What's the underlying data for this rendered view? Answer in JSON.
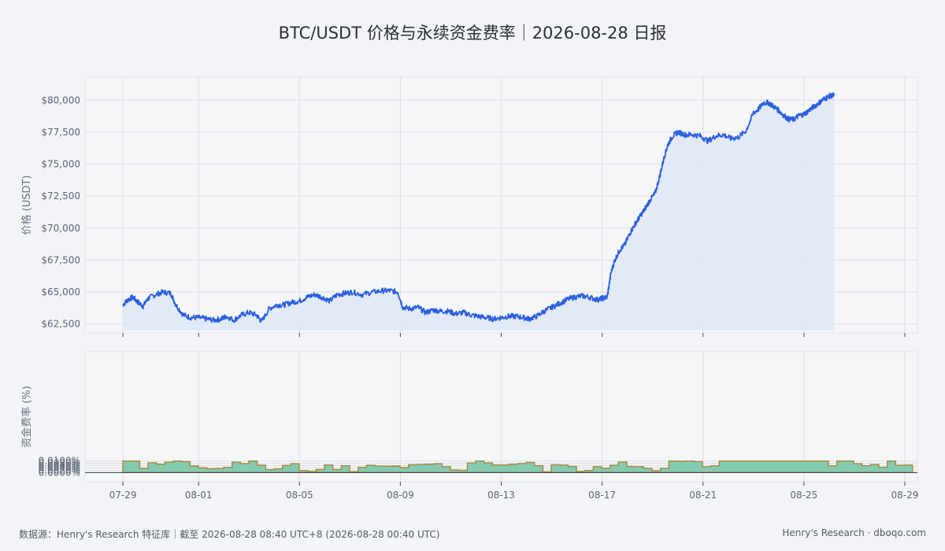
{
  "title": "BTC/USDT 价格与永续资金费率｜2026-08-28 日报",
  "footer": {
    "source": "数据源：Henry's Research 特征库｜截至 2026-08-28 08:40 UTC+8 (2026-08-28 00:40 UTC)",
    "brand": "Henry's Research · dboqo.com"
  },
  "colors": {
    "price_line": "#2a5fe0",
    "price_fill": "#dfe7f7",
    "funding_fill": "#85cbb2",
    "funding_stroke": "#a7883a",
    "panel_bg": "#f5f6f8",
    "grid": "#dcdfe4"
  },
  "chart_data": [
    {
      "type": "area",
      "name": "price",
      "ylabel": "价格 (USDT)",
      "ylim": [
        61800,
        81800
      ],
      "y_ticks": [
        62500,
        65000,
        67500,
        70000,
        72500,
        75000,
        77500,
        80000
      ],
      "y_tick_labels": [
        "$62,500",
        "$65,000",
        "$67,500",
        "$70,000",
        "$72,500",
        "$75,000",
        "$77,500",
        "$80,000"
      ],
      "x_unit": "days since 07-29",
      "grid": true,
      "points": [
        [
          0.0,
          64000
        ],
        [
          0.2,
          64400
        ],
        [
          0.4,
          64600
        ],
        [
          0.6,
          64200
        ],
        [
          0.8,
          63900
        ],
        [
          1.0,
          64500
        ],
        [
          1.3,
          64800
        ],
        [
          1.6,
          65000
        ],
        [
          1.9,
          64900
        ],
        [
          2.1,
          64000
        ],
        [
          2.4,
          63200
        ],
        [
          2.7,
          63000
        ],
        [
          3.0,
          63000
        ],
        [
          3.3,
          62900
        ],
        [
          3.6,
          62800
        ],
        [
          3.9,
          62900
        ],
        [
          4.1,
          63100
        ],
        [
          4.4,
          62800
        ],
        [
          4.7,
          63200
        ],
        [
          5.0,
          63400
        ],
        [
          5.3,
          63200
        ],
        [
          5.5,
          62700
        ],
        [
          5.8,
          63700
        ],
        [
          6.1,
          64000
        ],
        [
          6.4,
          64000
        ],
        [
          6.7,
          64200
        ],
        [
          7.0,
          64300
        ],
        [
          7.3,
          64600
        ],
        [
          7.6,
          64800
        ],
        [
          7.9,
          64600
        ],
        [
          8.2,
          64300
        ],
        [
          8.5,
          64800
        ],
        [
          8.8,
          64900
        ],
        [
          9.1,
          65000
        ],
        [
          9.5,
          64800
        ],
        [
          9.9,
          65000
        ],
        [
          10.3,
          65100
        ],
        [
          10.6,
          65100
        ],
        [
          10.9,
          65000
        ],
        [
          11.1,
          63800
        ],
        [
          11.4,
          63700
        ],
        [
          11.7,
          63800
        ],
        [
          12.0,
          63400
        ],
        [
          12.3,
          63600
        ],
        [
          12.6,
          63500
        ],
        [
          12.9,
          63500
        ],
        [
          13.2,
          63300
        ],
        [
          13.5,
          63400
        ],
        [
          13.8,
          63200
        ],
        [
          14.1,
          63100
        ],
        [
          14.4,
          63000
        ],
        [
          14.7,
          62900
        ],
        [
          15.0,
          63000
        ],
        [
          15.3,
          63100
        ],
        [
          15.6,
          63100
        ],
        [
          15.9,
          63000
        ],
        [
          16.1,
          62900
        ],
        [
          16.4,
          63100
        ],
        [
          16.7,
          63500
        ],
        [
          17.0,
          63800
        ],
        [
          17.3,
          64100
        ],
        [
          17.6,
          64400
        ],
        [
          17.9,
          64600
        ],
        [
          18.2,
          64700
        ],
        [
          18.5,
          64600
        ],
        [
          18.8,
          64400
        ],
        [
          19.0,
          64500
        ],
        [
          19.2,
          64600
        ],
        [
          19.35,
          66500
        ],
        [
          19.5,
          67500
        ],
        [
          19.7,
          68300
        ],
        [
          19.9,
          68700
        ],
        [
          20.1,
          69600
        ],
        [
          20.3,
          70300
        ],
        [
          20.5,
          70900
        ],
        [
          20.7,
          71500
        ],
        [
          20.9,
          72200
        ],
        [
          21.1,
          72700
        ],
        [
          21.3,
          74200
        ],
        [
          21.45,
          75500
        ],
        [
          21.6,
          76500
        ],
        [
          21.8,
          77200
        ],
        [
          22.0,
          77500
        ],
        [
          22.3,
          77300
        ],
        [
          22.6,
          77300
        ],
        [
          22.9,
          77200
        ],
        [
          23.2,
          76800
        ],
        [
          23.5,
          77200
        ],
        [
          23.8,
          77300
        ],
        [
          24.1,
          77000
        ],
        [
          24.4,
          77100
        ],
        [
          24.7,
          77600
        ],
        [
          25.0,
          79000
        ],
        [
          25.2,
          79300
        ],
        [
          25.4,
          79800
        ],
        [
          25.6,
          79800
        ],
        [
          25.8,
          79500
        ],
        [
          26.0,
          79200
        ],
        [
          26.2,
          78800
        ],
        [
          26.4,
          78500
        ],
        [
          26.6,
          78500
        ],
        [
          26.8,
          78800
        ],
        [
          27.0,
          78900
        ],
        [
          27.2,
          79200
        ],
        [
          27.4,
          79500
        ],
        [
          27.6,
          79800
        ],
        [
          27.8,
          80100
        ],
        [
          28.0,
          80300
        ],
        [
          28.2,
          80400
        ]
      ]
    },
    {
      "type": "area",
      "name": "funding",
      "ylabel": "资金费率 (%)",
      "ylim": [
        -8e-05,
        0.00105
      ],
      "y_ticks": [
        0.0,
        0.002,
        0.004,
        0.006,
        0.008,
        0.01
      ],
      "y_tick_labels": [
        "0.0000%",
        "0.0020%",
        "0.0040%",
        "0.0060%",
        "0.0080%",
        "0.0100%"
      ],
      "x_ticks": [
        0,
        3,
        7,
        11,
        15,
        19,
        23,
        27,
        31
      ],
      "x_tick_labels": [
        "07-29",
        "08-01",
        "08-05",
        "08-09",
        "08-13",
        "08-17",
        "08-21",
        "08-25",
        "08-29"
      ],
      "grid": true,
      "step_width": 0.333,
      "values": [
        0.01,
        0.01,
        0.0037,
        0.0085,
        0.0073,
        0.009,
        0.01,
        0.0095,
        0.0057,
        0.0042,
        0.0032,
        0.0035,
        0.0045,
        0.009,
        0.0078,
        0.01,
        0.0064,
        0.0025,
        0.0031,
        0.0062,
        0.0077,
        0.0017,
        0.001,
        0.0027,
        0.0066,
        0.0027,
        0.0059,
        0.0008,
        0.0045,
        0.0063,
        0.0056,
        0.0055,
        0.0057,
        0.0044,
        0.0067,
        0.007,
        0.0073,
        0.0077,
        0.005,
        0.0023,
        0.002,
        0.0083,
        0.01,
        0.0085,
        0.0066,
        0.0066,
        0.0073,
        0.0079,
        0.0088,
        0.006,
        0.0006,
        0.0068,
        0.0065,
        0.0052,
        0.001,
        0.0018,
        0.005,
        0.0038,
        0.0063,
        0.0092,
        0.0052,
        0.0051,
        0.0037,
        0.0016,
        0.0038,
        0.01,
        0.0098,
        0.01,
        0.0095,
        0.005,
        0.0058,
        0.01,
        0.01,
        0.01,
        0.01,
        0.01,
        0.01,
        0.01,
        0.01,
        0.01,
        0.01,
        0.01,
        0.01,
        0.01,
        0.0058,
        0.01,
        0.01,
        0.0077,
        0.0059,
        0.007,
        0.0046,
        0.01,
        0.0063,
        0.0065
      ]
    }
  ]
}
